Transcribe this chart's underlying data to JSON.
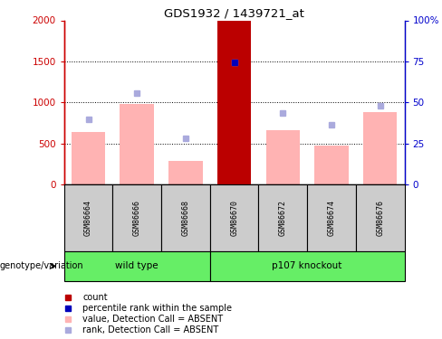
{
  "title": "GDS1932 / 1439721_at",
  "samples": [
    "GSM86664",
    "GSM86666",
    "GSM86668",
    "GSM86670",
    "GSM86672",
    "GSM86674",
    "GSM86676"
  ],
  "bar_values": [
    640,
    980,
    295,
    2000,
    665,
    480,
    880
  ],
  "rank_values": [
    800,
    1120,
    565,
    1490,
    875,
    730,
    960
  ],
  "bar_color_pink": "#ffb3b3",
  "special_bar_color": "#bb0000",
  "special_bar_index": 3,
  "rank_color": "#aaaadd",
  "blue_dot_color": "#0000bb",
  "blue_dot_index": 3,
  "blue_dot_value": 1490,
  "ylim_left": [
    0,
    2000
  ],
  "ylim_right": [
    0,
    100
  ],
  "yticks_left": [
    0,
    500,
    1000,
    1500,
    2000
  ],
  "ytick_labels_left": [
    "0",
    "500",
    "1000",
    "1500",
    "2000"
  ],
  "yticks_right": [
    0,
    25,
    50,
    75,
    100
  ],
  "ytick_labels_right": [
    "0",
    "25",
    "50",
    "75",
    "100%"
  ],
  "group1_label": "wild type",
  "group2_label": "p107 knockout",
  "group1_indices": [
    0,
    1,
    2
  ],
  "group2_indices": [
    3,
    4,
    5,
    6
  ],
  "genotype_label": "genotype/variation",
  "legend_items": [
    {
      "label": "count",
      "color": "#bb0000"
    },
    {
      "label": "percentile rank within the sample",
      "color": "#0000bb"
    },
    {
      "label": "value, Detection Call = ABSENT",
      "color": "#ffb3b3"
    },
    {
      "label": "rank, Detection Call = ABSENT",
      "color": "#aaaadd"
    }
  ],
  "left_axis_color": "#cc0000",
  "right_axis_color": "#0000cc",
  "bar_width": 0.7,
  "fig_width": 4.88,
  "fig_height": 3.75,
  "dpi": 100
}
